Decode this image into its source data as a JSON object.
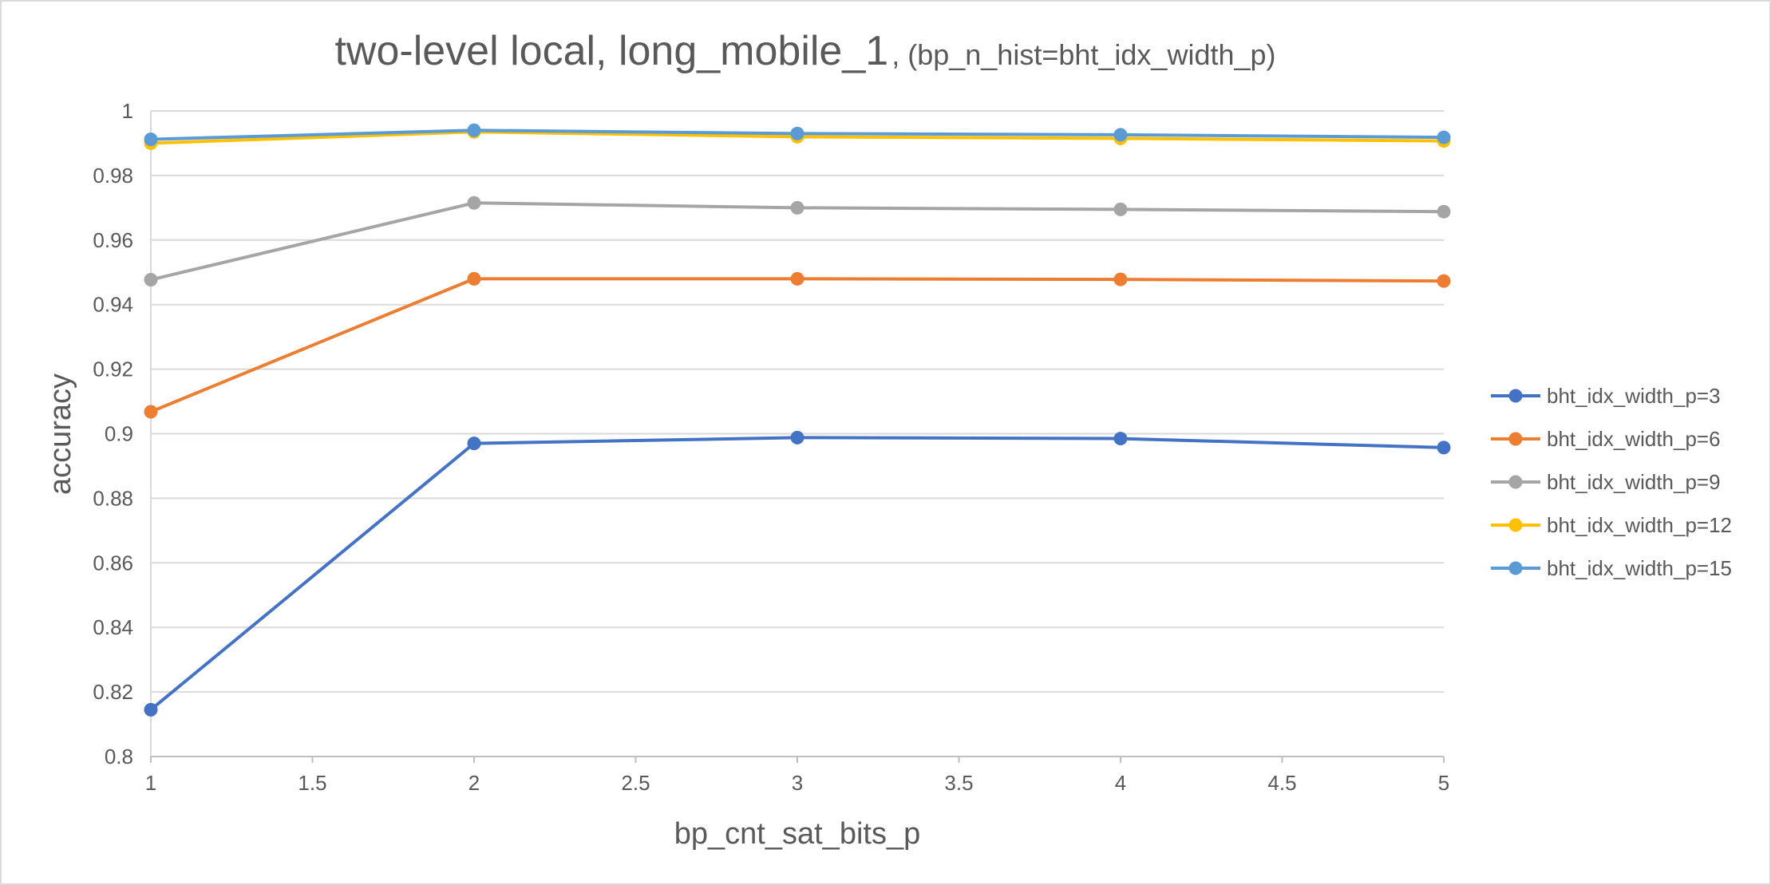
{
  "chart_data": {
    "type": "line",
    "title": "two-level local, long_mobile_1",
    "subtitle": ", (bp_n_hist=bht_idx_width_p)",
    "xlabel": "bp_cnt_sat_bits_p",
    "ylabel": "accuracy",
    "xlim": [
      1,
      5
    ],
    "ylim": [
      0.8,
      1
    ],
    "x_ticks": [
      "1",
      "1.5",
      "2",
      "2.5",
      "3",
      "3.5",
      "4",
      "4.5",
      "5"
    ],
    "y_ticks": [
      "0.8",
      "0.82",
      "0.84",
      "0.86",
      "0.88",
      "0.9",
      "0.92",
      "0.94",
      "0.96",
      "0.98",
      "1"
    ],
    "x": [
      1,
      2,
      3,
      4,
      5
    ],
    "grid": "horizontal",
    "legend_position": "right",
    "series": [
      {
        "name": "bht_idx_width_p=3",
        "color": "#4472c4",
        "values": [
          0.8145,
          0.897,
          0.8988,
          0.8985,
          0.8957
        ]
      },
      {
        "name": "bht_idx_width_p=6",
        "color": "#ed7d31",
        "values": [
          0.9068,
          0.948,
          0.948,
          0.9478,
          0.9473
        ]
      },
      {
        "name": "bht_idx_width_p=9",
        "color": "#a5a5a5",
        "values": [
          0.9477,
          0.9715,
          0.97,
          0.9695,
          0.9688
        ]
      },
      {
        "name": "bht_idx_width_p=12",
        "color": "#ffc000",
        "values": [
          0.99,
          0.9935,
          0.992,
          0.9915,
          0.9907
        ]
      },
      {
        "name": "bht_idx_width_p=15",
        "color": "#5b9bd5",
        "values": [
          0.9912,
          0.994,
          0.993,
          0.9926,
          0.9918
        ]
      }
    ]
  }
}
